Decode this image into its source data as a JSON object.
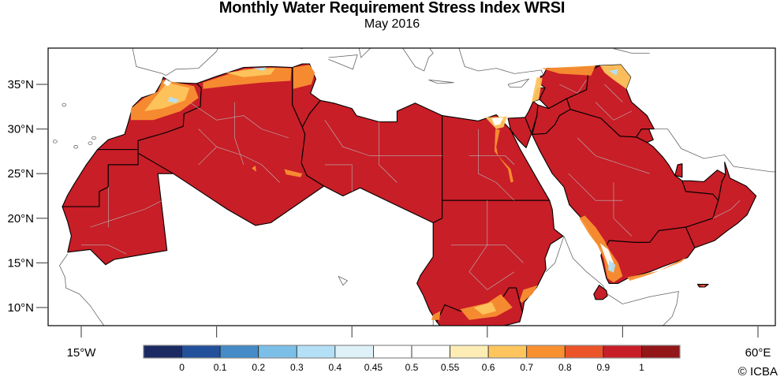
{
  "chart_data": {
    "type": "heatmap",
    "title": "Monthly Water Requirement Stress Index WRSI",
    "subtitle": "May 2016",
    "projection": "cylindrical equidistant",
    "extent": {
      "lon": [
        -18.7,
        62
      ],
      "lat": [
        8,
        39
      ]
    },
    "xaxis": {
      "ticks": [
        -15,
        0,
        15,
        30,
        45,
        60
      ],
      "tick_labels": [
        "15°W",
        "",
        "",
        "",
        "",
        "60°E"
      ]
    },
    "yaxis": {
      "ticks": [
        35,
        30,
        25,
        20,
        15,
        10
      ],
      "tick_labels": [
        "35°N",
        "30°N",
        "25°N",
        "20°N",
        "15°N",
        "10°N"
      ]
    },
    "colorbar": {
      "orientation": "horizontal",
      "placement": "bottom",
      "boundaries": [
        0,
        0.1,
        0.2,
        0.3,
        0.4,
        0.45,
        0.5,
        0.55,
        0.6,
        0.7,
        0.8,
        0.9,
        1
      ],
      "labels": [
        "0",
        "0.1",
        "0.2",
        "0.3",
        "0.4",
        "0.45",
        "0.5",
        "0.55",
        "0.6",
        "0.7",
        "0.8",
        "0.9",
        "1"
      ],
      "colors": [
        "#1c2a63",
        "#22509a",
        "#448bc8",
        "#7bbfe8",
        "#b3e0f6",
        "#def0f8",
        "#ffffff",
        "#ffffff",
        "#fdedb5",
        "#fec55e",
        "#f99030",
        "#eb5429",
        "#c81e27",
        "#931619"
      ]
    },
    "dominant_value_class": "0.9-1",
    "dominant_color": "#c81e27",
    "notes": "Nearly the whole Arab region shows WRSI 0.9–1 (dark red); lower values (orange/yellow/white/light blue) appear along Mediterranean coast of Morocco–Algeria–Tunisia, Nile delta and valley, Levant, northern Iraq, SW Saudi Arabia / Yemen highlands, and southern Sudan."
  },
  "credit": "© ICBA"
}
